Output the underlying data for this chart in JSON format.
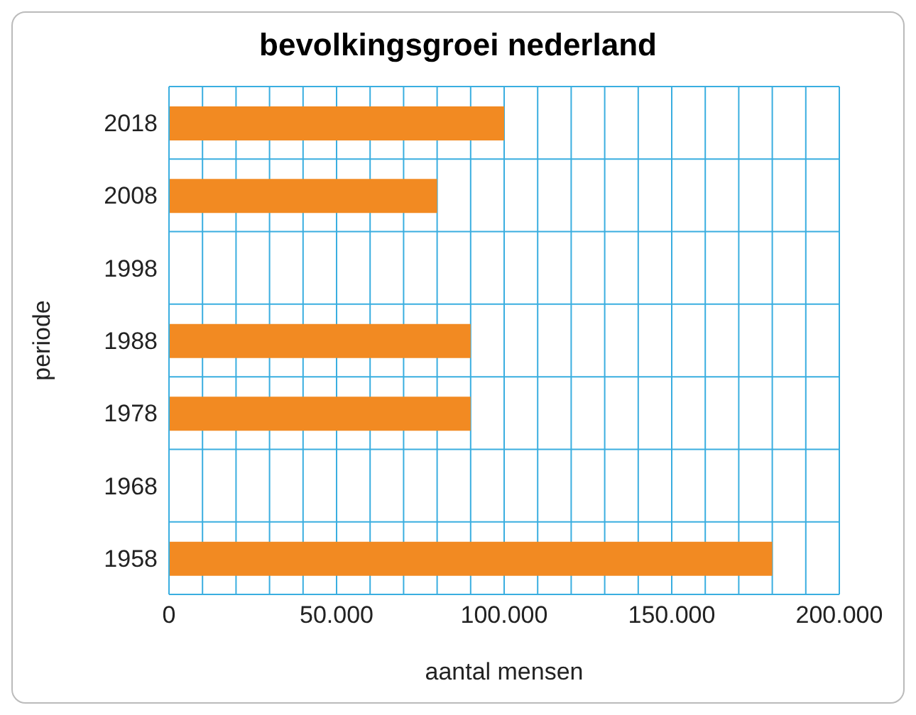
{
  "chart_data": {
    "type": "bar",
    "orientation": "horizontal",
    "title": "bevolkingsgroei nederland",
    "xlabel": "aantal mensen",
    "ylabel": "periode",
    "categories": [
      "2018",
      "2008",
      "1998",
      "1988",
      "1978",
      "1968",
      "1958"
    ],
    "values": [
      100000,
      80000,
      null,
      90000,
      90000,
      null,
      180000
    ],
    "color": "#f28a22",
    "xlim": [
      0,
      200000
    ],
    "xticks": [
      0,
      {
        "value": 10000,
        "label": null
      },
      {
        "value": 20000,
        "label": null
      },
      {
        "value": 30000,
        "label": null
      },
      {
        "value": 40000,
        "label": null
      },
      {
        "value": 50000,
        "label": "50.000"
      },
      {
        "value": 60000,
        "label": null
      },
      {
        "value": 70000,
        "label": null
      },
      {
        "value": 80000,
        "label": null
      },
      {
        "value": 90000,
        "label": null
      },
      {
        "value": 100000,
        "label": "100.000"
      },
      {
        "value": 110000,
        "label": null
      },
      {
        "value": 120000,
        "label": null
      },
      {
        "value": 130000,
        "label": null
      },
      {
        "value": 140000,
        "label": null
      },
      {
        "value": 150000,
        "label": "150.000"
      },
      {
        "value": 160000,
        "label": null
      },
      {
        "value": 170000,
        "label": null
      },
      {
        "value": 180000,
        "label": null
      },
      {
        "value": 190000,
        "label": null
      },
      {
        "value": 200000,
        "label": "200.000"
      }
    ],
    "grid": true,
    "legend": false
  }
}
